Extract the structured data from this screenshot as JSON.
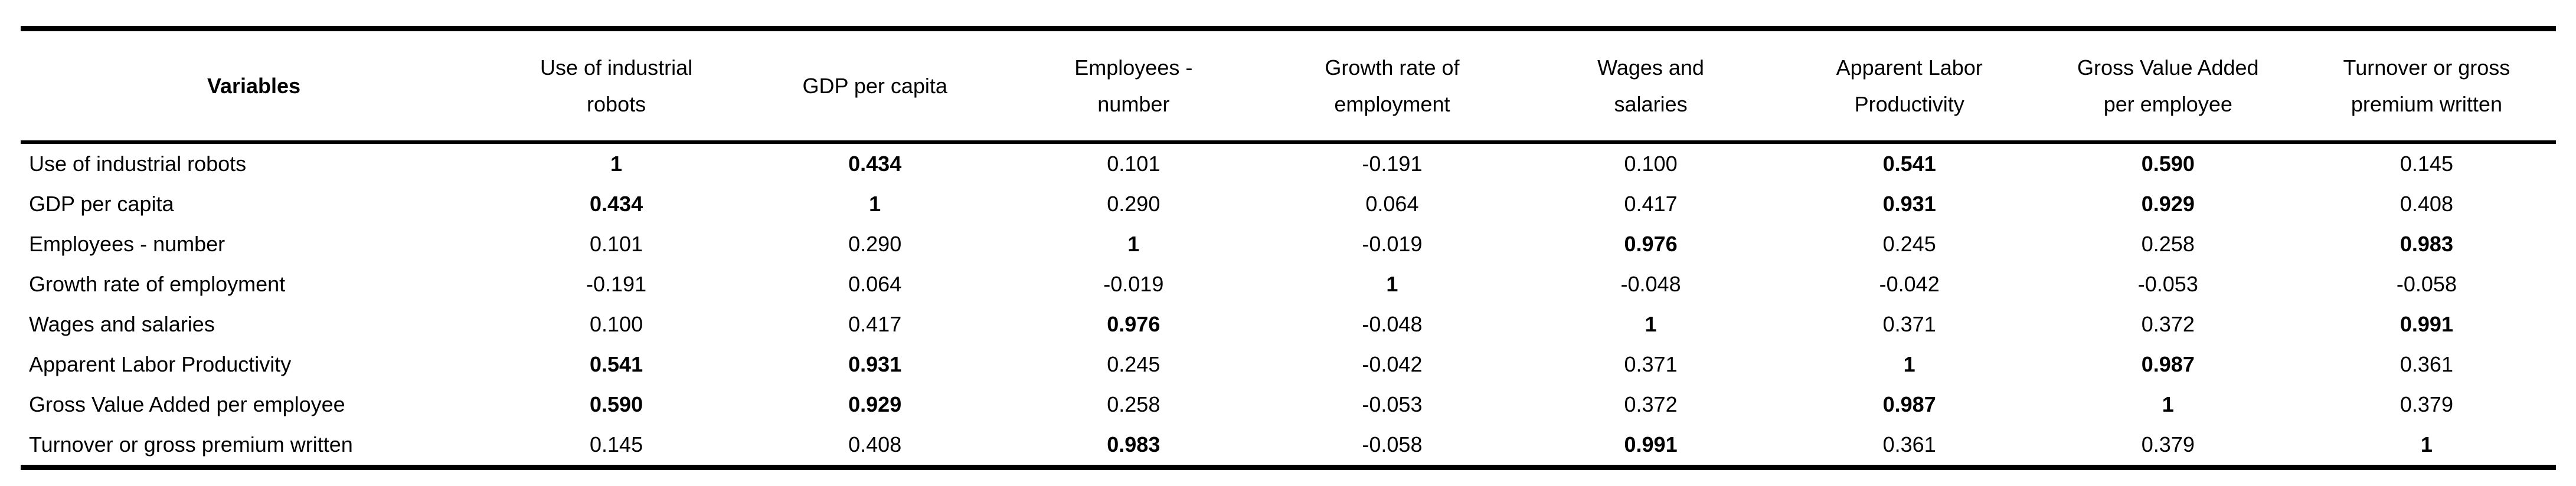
{
  "table": {
    "variables_label": "Variables",
    "columns": [
      [
        "Use of industrial",
        "robots"
      ],
      [
        "GDP per capita"
      ],
      [
        "Employees -",
        "number"
      ],
      [
        "Growth rate of",
        "employment"
      ],
      [
        "Wages and",
        "salaries"
      ],
      [
        "Apparent Labor",
        "Productivity"
      ],
      [
        "Gross Value Added",
        "per employee"
      ],
      [
        "Turnover or gross",
        "premium written"
      ]
    ],
    "rows": [
      {
        "label": "Use of industrial robots",
        "values": [
          "1",
          "0.434",
          "0.101",
          "-0.191",
          "0.100",
          "0.541",
          "0.590",
          "0.145"
        ],
        "bold": [
          true,
          true,
          false,
          false,
          false,
          true,
          true,
          false
        ]
      },
      {
        "label": "GDP per capita",
        "values": [
          "0.434",
          "1",
          "0.290",
          "0.064",
          "0.417",
          "0.931",
          "0.929",
          "0.408"
        ],
        "bold": [
          true,
          true,
          false,
          false,
          false,
          true,
          true,
          false
        ]
      },
      {
        "label": "Employees - number",
        "values": [
          "0.101",
          "0.290",
          "1",
          "-0.019",
          "0.976",
          "0.245",
          "0.258",
          "0.983"
        ],
        "bold": [
          false,
          false,
          true,
          false,
          true,
          false,
          false,
          true
        ]
      },
      {
        "label": "Growth rate of employment",
        "values": [
          "-0.191",
          "0.064",
          "-0.019",
          "1",
          "-0.048",
          "-0.042",
          "-0.053",
          "-0.058"
        ],
        "bold": [
          false,
          false,
          false,
          true,
          false,
          false,
          false,
          false
        ]
      },
      {
        "label": "Wages and salaries",
        "values": [
          "0.100",
          "0.417",
          "0.976",
          "-0.048",
          "1",
          "0.371",
          "0.372",
          "0.991"
        ],
        "bold": [
          false,
          false,
          true,
          false,
          true,
          false,
          false,
          true
        ]
      },
      {
        "label": "Apparent Labor Productivity",
        "values": [
          "0.541",
          "0.931",
          "0.245",
          "-0.042",
          "0.371",
          "1",
          "0.987",
          "0.361"
        ],
        "bold": [
          true,
          true,
          false,
          false,
          false,
          true,
          true,
          false
        ]
      },
      {
        "label": "Gross Value Added per employee",
        "values": [
          "0.590",
          "0.929",
          "0.258",
          "-0.053",
          "0.372",
          "0.987",
          "1",
          "0.379"
        ],
        "bold": [
          true,
          true,
          false,
          false,
          false,
          true,
          true,
          false
        ]
      },
      {
        "label": "Turnover or gross premium written",
        "values": [
          "0.145",
          "0.408",
          "0.983",
          "-0.058",
          "0.991",
          "0.361",
          "0.379",
          "1"
        ],
        "bold": [
          false,
          false,
          true,
          false,
          true,
          false,
          false,
          true
        ]
      }
    ]
  },
  "colors": {
    "text": "#000000",
    "rule": "#000000",
    "background": "#ffffff"
  }
}
